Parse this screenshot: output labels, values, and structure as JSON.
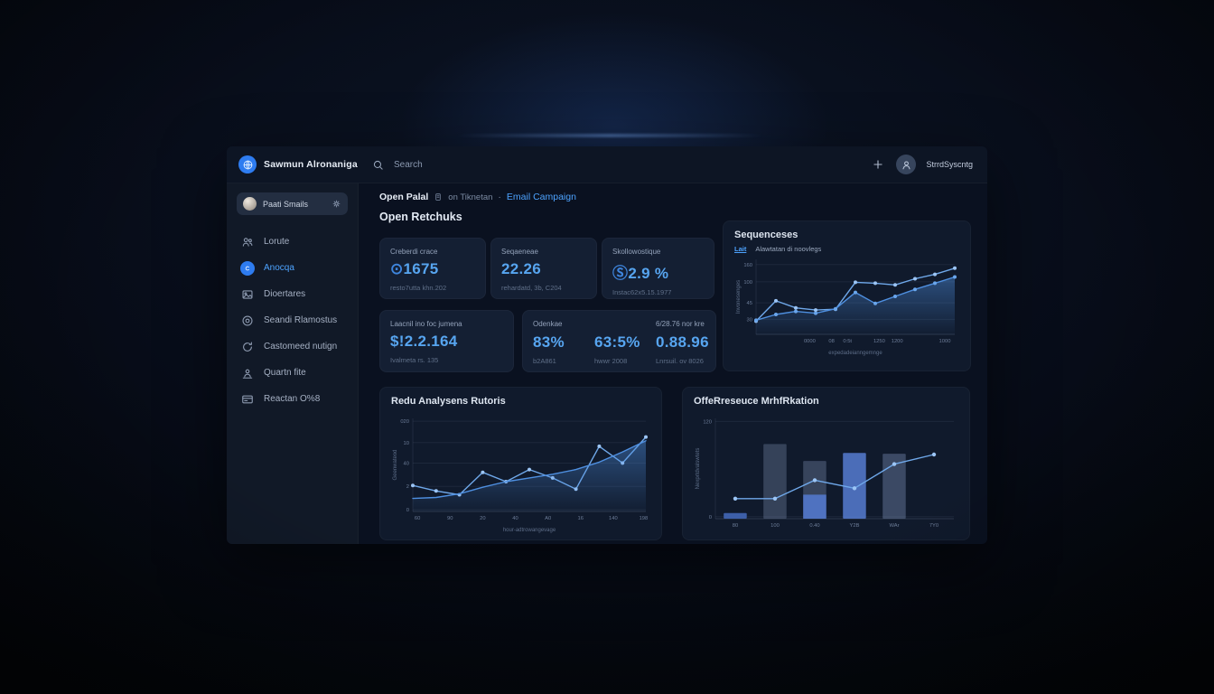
{
  "topbar": {
    "brand": "Sawmun Alronaniga",
    "search_placeholder": "Search",
    "add_label": "+",
    "user_name": "StrrdSyscntg"
  },
  "sidebar": {
    "profile_name": "Paati Smails",
    "items": [
      {
        "label": "Lorute",
        "icon": "users-icon",
        "active": false
      },
      {
        "label": "Anocqa",
        "icon": "compass-icon",
        "active": true
      },
      {
        "label": "Dioertares",
        "icon": "image-icon",
        "active": false
      },
      {
        "label": "Seandi Rlamostus",
        "icon": "target-icon",
        "active": false
      },
      {
        "label": "Castomeed nutign",
        "icon": "refresh-icon",
        "active": false
      },
      {
        "label": "Quartn fite",
        "icon": "presentation-icon",
        "active": false
      },
      {
        "label": "Reactan O%8",
        "icon": "card-icon",
        "active": false
      }
    ]
  },
  "breadcrumb": {
    "root": "Open Palal",
    "context": "on Tiknetan",
    "separator": "·",
    "current": "Email Campaign"
  },
  "section_title": "Open Retchuks",
  "stats": {
    "row1": [
      {
        "label": "Creberdi crace",
        "prefix": "⊙",
        "value": "1675",
        "sub": "resto7utta khn.202"
      },
      {
        "label": "Seqaeneae",
        "prefix": "",
        "value": "22.26",
        "sub": "rehardatd, 3b, C204"
      },
      {
        "label": "Skollowostique",
        "prefix": "Ⓢ",
        "value": "2.9 %",
        "sub": "Instac62x5.15.1977"
      }
    ],
    "row2_card": {
      "label": "Laacnil ino foc jumena",
      "prefix": "",
      "value": "$!2.2.164",
      "sub": "Ivalmeta rs. 135"
    },
    "wide": [
      {
        "label": "Odenkae",
        "prefix": "",
        "value": "83%",
        "sub": "b2A861"
      },
      {
        "label": "",
        "prefix": "",
        "value": "63:5%",
        "sub": "hwwr 2008"
      },
      {
        "label": "6/28.76 nor kre",
        "prefix": "",
        "value": "0.88.96",
        "sub": "Lnrsuil. ov 8026"
      }
    ]
  },
  "chart_data": [
    {
      "type": "line",
      "title": "Sequenceses",
      "legend": [
        {
          "label": "Lait",
          "active": true
        },
        {
          "label": "Alawtatan di noovlegs",
          "active": false
        }
      ],
      "xlabel": "expedadeianngemnge",
      "ylabel": "Invonesenges",
      "ylim": [
        0,
        170
      ],
      "yticks": [
        {
          "label": "160",
          "f": 0.93
        },
        {
          "label": "100",
          "f": 0.7
        },
        {
          "label": "45",
          "f": 0.42
        },
        {
          "label": "30",
          "f": 0.2
        }
      ],
      "xticks": [
        {
          "label": "0000",
          "f": 0.27
        },
        {
          "label": "08",
          "f": 0.38
        },
        {
          "label": "0:5t",
          "f": 0.46
        },
        {
          "label": "1250",
          "f": 0.62
        },
        {
          "label": "1200",
          "f": 0.71
        },
        {
          "label": "1000",
          "f": 0.95
        }
      ],
      "series": [
        {
          "name": "Lait",
          "values": [
            30,
            76,
            60,
            55,
            57,
            118,
            116,
            112,
            126,
            136,
            150
          ],
          "area": false,
          "markers": true,
          "color": "#6fa8ea",
          "marker_color": "#9cc5f5"
        },
        {
          "name": "Alawtatan di noovlegs",
          "values": [
            32,
            45,
            52,
            48,
            58,
            95,
            70,
            86,
            102,
            116,
            130
          ],
          "area": true,
          "markers": true,
          "color": "#4e8fe0",
          "marker_color": "#6aa6ec"
        }
      ]
    },
    {
      "type": "line",
      "title": "Redu Analysens Rutoris",
      "xlabel": "hour-adtrowangevage",
      "ylabel": "Geenwateod",
      "ylim": [
        0,
        100
      ],
      "yticks": [
        {
          "label": "020",
          "f": 0.97
        },
        {
          "label": "10",
          "f": 0.74
        },
        {
          "label": "40",
          "f": 0.52
        },
        {
          "label": "2",
          "f": 0.27
        },
        {
          "label": "0",
          "f": 0.02
        }
      ],
      "xticks": [
        {
          "label": "60",
          "f": 0.02
        },
        {
          "label": "90",
          "f": 0.16
        },
        {
          "label": "20",
          "f": 0.3
        },
        {
          "label": "40",
          "f": 0.44
        },
        {
          "label": "A0",
          "f": 0.58
        },
        {
          "label": "16",
          "f": 0.72
        },
        {
          "label": "140",
          "f": 0.86
        },
        {
          "label": "198",
          "f": 0.99
        }
      ],
      "series": [
        {
          "name": "observed",
          "values": [
            28,
            22,
            18,
            42,
            32,
            45,
            36,
            24,
            70,
            52,
            80
          ],
          "area": false,
          "markers": true,
          "color": "#6fa8ea",
          "marker_color": "#9cc5f5"
        },
        {
          "name": "trend",
          "values": [
            14,
            15,
            19,
            26,
            32,
            36,
            40,
            45,
            53,
            64,
            76
          ],
          "area": true,
          "markers": false,
          "color": "#4e8fe0",
          "marker_color": "#6aa6ec"
        }
      ]
    },
    {
      "type": "bar",
      "title": "OffeRreseuce MrhfRkation",
      "ylabel": "Nexprtdvalswtets",
      "ylim": [
        0,
        125
      ],
      "yticks": [
        {
          "label": "120",
          "f": 0.97
        },
        {
          "label": "0",
          "f": 0.02
        }
      ],
      "categories": [
        "80",
        "100",
        "0.40",
        "Y2B",
        "WAr",
        "7Y0"
      ],
      "bars": [
        {
          "value": 7,
          "color": "#3d5fa8"
        },
        {
          "value": 93,
          "color": "rgba(139,158,196,0.30)"
        },
        {
          "value": 72,
          "color": "rgba(139,158,196,0.32)",
          "sub": 30,
          "sub_color": "rgba(84,122,209,0.85)"
        },
        {
          "value": 82,
          "color": "rgba(90,130,220,0.80)"
        },
        {
          "value": 81,
          "color": "rgba(125,145,185,0.40)"
        },
        {
          "value": 0,
          "color": "transparent"
        }
      ],
      "line": {
        "values": [
          25,
          25,
          48,
          38,
          68,
          80
        ],
        "color": "#6fa8ea",
        "marker_color": "#9cc5f5"
      }
    }
  ],
  "colors": {
    "accent": "#4da3ff",
    "value_blue": "#57a5f0",
    "panel": "#101a2c"
  }
}
